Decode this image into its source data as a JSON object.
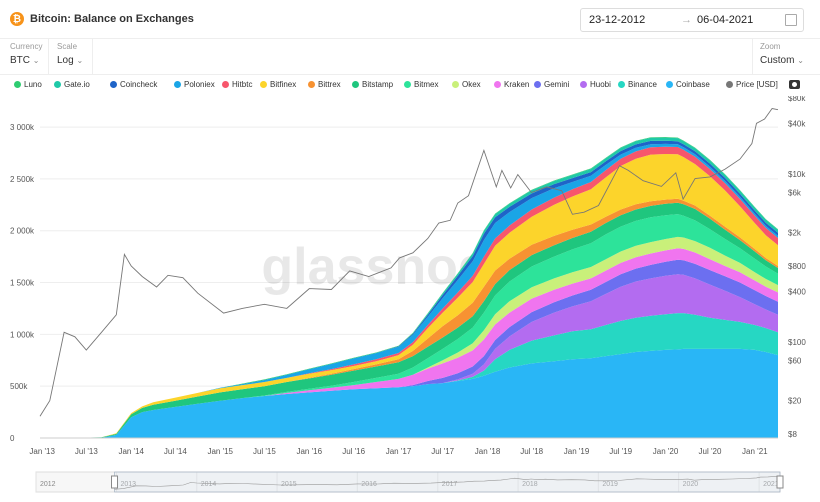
{
  "header": {
    "title": "Bitcoin: Balance on Exchanges",
    "date_from": "23-12-2012",
    "date_to": "06-04-2021",
    "arrow": "→"
  },
  "controls": {
    "currency": {
      "label": "Currency",
      "value": "BTC"
    },
    "scale": {
      "label": "Scale",
      "value": "Log"
    },
    "zoom": {
      "label": "Zoom",
      "value": "Custom"
    }
  },
  "watermark": "glassnode",
  "chart_data": {
    "type": "area",
    "title": "Bitcoin: Balance on Exchanges",
    "x_dates": [
      "2012-12-23",
      "2013-03-01",
      "2013-06-01",
      "2013-09-01",
      "2013-11-01",
      "2014-01-01",
      "2014-02-15",
      "2014-04-01",
      "2014-07-01",
      "2014-10-01",
      "2015-01-01",
      "2015-04-01",
      "2015-07-01",
      "2015-10-01",
      "2016-01-01",
      "2016-04-01",
      "2016-07-01",
      "2016-10-01",
      "2017-01-01",
      "2017-03-01",
      "2017-05-01",
      "2017-07-01",
      "2017-09-01",
      "2017-11-01",
      "2017-12-17",
      "2018-02-01",
      "2018-04-01",
      "2018-07-01",
      "2018-10-01",
      "2018-12-15",
      "2019-03-01",
      "2019-05-01",
      "2019-07-01",
      "2019-09-01",
      "2019-11-01",
      "2020-01-01",
      "2020-02-20",
      "2020-03-15",
      "2020-05-01",
      "2020-07-01",
      "2020-09-01",
      "2020-11-01",
      "2021-01-01",
      "2021-02-15",
      "2021-04-06"
    ],
    "series": [
      {
        "name": "Coinbase",
        "color": "#29b6f6",
        "values": [
          0,
          0,
          1000,
          3000,
          30000,
          200000,
          250000,
          270000,
          300000,
          330000,
          360000,
          385000,
          405000,
          425000,
          440000,
          455000,
          470000,
          480000,
          490000,
          500000,
          520000,
          530000,
          550000,
          570000,
          600000,
          640000,
          680000,
          720000,
          740000,
          760000,
          770000,
          790000,
          810000,
          830000,
          840000,
          850000,
          855000,
          860000,
          860000,
          860000,
          860000,
          860000,
          850000,
          830000,
          800000
        ]
      },
      {
        "name": "Binance",
        "color": "#26d7c3",
        "values": [
          0,
          0,
          0,
          0,
          0,
          0,
          0,
          0,
          0,
          0,
          0,
          0,
          0,
          0,
          0,
          0,
          0,
          0,
          0,
          0,
          0,
          0,
          5000,
          20000,
          50000,
          120000,
          170000,
          220000,
          250000,
          270000,
          280000,
          300000,
          320000,
          330000,
          340000,
          345000,
          350000,
          345000,
          330000,
          300000,
          280000,
          260000,
          240000,
          230000,
          220000
        ]
      },
      {
        "name": "Huobi",
        "color": "#b36cf0",
        "values": [
          0,
          0,
          0,
          0,
          0,
          0,
          0,
          0,
          0,
          0,
          0,
          0,
          0,
          0,
          0,
          0,
          0,
          0,
          0,
          0,
          0,
          0,
          10000,
          30000,
          60000,
          100000,
          130000,
          180000,
          220000,
          240000,
          270000,
          300000,
          330000,
          350000,
          360000,
          370000,
          375000,
          370000,
          350000,
          320000,
          280000,
          240000,
          200000,
          180000,
          170000
        ]
      },
      {
        "name": "Gemini",
        "color": "#6c6ff0",
        "values": [
          0,
          0,
          0,
          0,
          0,
          0,
          0,
          0,
          0,
          0,
          0,
          0,
          0,
          0,
          0,
          0,
          0,
          0,
          0,
          10000,
          30000,
          50000,
          60000,
          70000,
          80000,
          85000,
          90000,
          95000,
          100000,
          105000,
          110000,
          115000,
          120000,
          125000,
          130000,
          135000,
          140000,
          140000,
          140000,
          140000,
          140000,
          140000,
          135000,
          130000,
          125000
        ]
      },
      {
        "name": "Kraken",
        "color": "#f075ef",
        "values": [
          0,
          0,
          0,
          0,
          0,
          0,
          0,
          0,
          0,
          0,
          0,
          0,
          0,
          10000,
          20000,
          30000,
          40000,
          60000,
          80000,
          100000,
          120000,
          140000,
          150000,
          155000,
          160000,
          150000,
          140000,
          130000,
          120000,
          115000,
          110000,
          110000,
          110000,
          110000,
          110000,
          110000,
          110000,
          110000,
          110000,
          105000,
          100000,
          100000,
          95000,
          90000,
          90000
        ]
      },
      {
        "name": "Okex",
        "color": "#c9f07a",
        "values": [
          0,
          0,
          0,
          0,
          0,
          0,
          0,
          0,
          0,
          0,
          0,
          0,
          0,
          0,
          0,
          0,
          0,
          0,
          0,
          0,
          10000,
          30000,
          50000,
          70000,
          90000,
          100000,
          110000,
          110000,
          110000,
          110000,
          110000,
          110000,
          110000,
          110000,
          110000,
          110000,
          110000,
          110000,
          110000,
          110000,
          100000,
          90000,
          80000,
          75000,
          70000
        ]
      },
      {
        "name": "Bitmex",
        "color": "#2de39a",
        "values": [
          0,
          0,
          0,
          0,
          0,
          0,
          0,
          0,
          0,
          0,
          0,
          0,
          5000,
          10000,
          15000,
          20000,
          30000,
          40000,
          50000,
          70000,
          90000,
          110000,
          130000,
          150000,
          170000,
          180000,
          190000,
          200000,
          210000,
          220000,
          230000,
          240000,
          240000,
          240000,
          240000,
          230000,
          220000,
          210000,
          200000,
          180000,
          160000,
          140000,
          130000,
          120000,
          110000
        ]
      },
      {
        "name": "Bitstamp",
        "color": "#1fc67e",
        "values": [
          0,
          0,
          2000,
          5000,
          10000,
          30000,
          40000,
          50000,
          60000,
          70000,
          80000,
          85000,
          90000,
          95000,
          100000,
          105000,
          110000,
          110000,
          110000,
          110000,
          110000,
          110000,
          110000,
          110000,
          110000,
          110000,
          110000,
          110000,
          110000,
          110000,
          110000,
          110000,
          110000,
          110000,
          110000,
          110000,
          110000,
          110000,
          110000,
          100000,
          90000,
          80000,
          70000,
          60000,
          55000
        ]
      },
      {
        "name": "Bittrex",
        "color": "#f79232",
        "values": [
          0,
          0,
          0,
          0,
          0,
          0,
          0,
          0,
          0,
          0,
          0,
          0,
          0,
          0,
          5000,
          10000,
          15000,
          20000,
          30000,
          50000,
          80000,
          110000,
          120000,
          130000,
          140000,
          130000,
          110000,
          100000,
          90000,
          80000,
          70000,
          60000,
          55000,
          50000,
          45000,
          40000,
          38000,
          35000,
          33000,
          30000,
          28000,
          26000,
          24000,
          22000,
          20000
        ]
      },
      {
        "name": "Bitfinex",
        "color": "#fcd42b",
        "values": [
          0,
          0,
          0,
          0,
          5000,
          10000,
          15000,
          25000,
          30000,
          35000,
          40000,
          40000,
          40000,
          40000,
          40000,
          35000,
          30000,
          30000,
          40000,
          60000,
          100000,
          130000,
          170000,
          200000,
          220000,
          240000,
          250000,
          270000,
          300000,
          320000,
          340000,
          380000,
          420000,
          440000,
          450000,
          440000,
          430000,
          420000,
          400000,
          380000,
          350000,
          300000,
          250000,
          220000,
          200000
        ]
      },
      {
        "name": "Hitbtc",
        "color": "#f7566c",
        "values": [
          0,
          0,
          0,
          0,
          0,
          0,
          0,
          0,
          0,
          0,
          0,
          0,
          0,
          0,
          5000,
          10000,
          15000,
          20000,
          20000,
          25000,
          30000,
          40000,
          50000,
          60000,
          70000,
          70000,
          70000,
          70000,
          70000,
          70000,
          70000,
          70000,
          70000,
          70000,
          70000,
          70000,
          70000,
          70000,
          70000,
          70000,
          70000,
          70000,
          70000,
          70000,
          70000
        ]
      },
      {
        "name": "Poloniex",
        "color": "#1aa5e6",
        "values": [
          0,
          0,
          0,
          0,
          0,
          0,
          0,
          0,
          0,
          0,
          5000,
          10000,
          20000,
          30000,
          40000,
          50000,
          60000,
          60000,
          60000,
          70000,
          80000,
          100000,
          120000,
          140000,
          160000,
          150000,
          130000,
          110000,
          90000,
          70000,
          60000,
          50000,
          40000,
          35000,
          30000,
          28000,
          26000,
          25000,
          24000,
          23000,
          22000,
          21000,
          20000,
          20000,
          20000
        ]
      },
      {
        "name": "Coincheck",
        "color": "#1e64c8",
        "values": [
          0,
          0,
          0,
          0,
          0,
          0,
          0,
          0,
          0,
          0,
          0,
          0,
          0,
          0,
          0,
          0,
          0,
          0,
          5000,
          10000,
          20000,
          30000,
          40000,
          50000,
          60000,
          55000,
          50000,
          45000,
          40000,
          38000,
          36000,
          35000,
          34000,
          33000,
          32000,
          31000,
          30000,
          30000,
          30000,
          30000,
          30000,
          30000,
          30000,
          30000,
          30000
        ]
      },
      {
        "name": "Gate.io",
        "color": "#1fc9a8",
        "values": [
          0,
          0,
          0,
          0,
          0,
          0,
          0,
          0,
          0,
          0,
          0,
          0,
          0,
          0,
          0,
          0,
          0,
          0,
          0,
          5000,
          10000,
          15000,
          20000,
          25000,
          30000,
          30000,
          30000,
          30000,
          30000,
          30000,
          30000,
          30000,
          30000,
          30000,
          30000,
          30000,
          30000,
          30000,
          30000,
          30000,
          30000,
          30000,
          30000,
          30000,
          30000
        ]
      },
      {
        "name": "Luno",
        "color": "#2ecc71",
        "values": [
          0,
          0,
          0,
          0,
          0,
          0,
          0,
          0,
          0,
          0,
          0,
          5000,
          5000,
          5000,
          5000,
          5000,
          5000,
          5000,
          5000,
          5000,
          5000,
          5000,
          5000,
          5000,
          5000,
          5000,
          5000,
          5000,
          5000,
          5000,
          5000,
          5000,
          5000,
          5000,
          5000,
          5000,
          5000,
          5000,
          5000,
          5000,
          5000,
          5000,
          5000,
          5000,
          5000
        ]
      }
    ],
    "price_series": {
      "name": "Price [USD]",
      "color": "#777777",
      "dates": [
        "2012-12-23",
        "2013-02-01",
        "2013-04-01",
        "2013-05-15",
        "2013-07-01",
        "2013-09-01",
        "2013-11-01",
        "2013-12-04",
        "2014-01-01",
        "2014-02-15",
        "2014-04-15",
        "2014-06-01",
        "2014-08-01",
        "2014-10-01",
        "2015-01-15",
        "2015-04-01",
        "2015-07-01",
        "2015-10-01",
        "2016-01-01",
        "2016-04-01",
        "2016-06-15",
        "2016-09-01",
        "2016-12-01",
        "2017-01-05",
        "2017-03-01",
        "2017-05-01",
        "2017-06-15",
        "2017-08-01",
        "2017-09-01",
        "2017-10-15",
        "2017-12-17",
        "2018-02-06",
        "2018-03-01",
        "2018-04-06",
        "2018-05-05",
        "2018-06-30",
        "2018-09-01",
        "2018-11-01",
        "2018-12-15",
        "2019-02-01",
        "2019-04-01",
        "2019-06-26",
        "2019-08-01",
        "2019-10-01",
        "2019-12-15",
        "2020-02-12",
        "2020-03-13",
        "2020-05-01",
        "2020-07-01",
        "2020-09-01",
        "2020-11-01",
        "2020-12-20",
        "2021-01-08",
        "2021-02-10",
        "2021-03-13",
        "2021-04-06"
      ],
      "values": [
        13,
        20,
        130,
        115,
        80,
        130,
        210,
        1100,
        800,
        600,
        450,
        620,
        580,
        380,
        220,
        250,
        280,
        250,
        430,
        420,
        700,
        600,
        760,
        1000,
        1150,
        1700,
        2600,
        2800,
        4500,
        5500,
        19000,
        7000,
        11000,
        6800,
        9800,
        6000,
        7000,
        6300,
        3300,
        3500,
        4200,
        12500,
        11000,
        8300,
        7100,
        10300,
        5000,
        8800,
        9200,
        11400,
        15000,
        23000,
        40000,
        45000,
        60000,
        58000
      ]
    },
    "y_left": {
      "ticks": [
        "0",
        "500k",
        "1 000k",
        "1 500k",
        "2 000k",
        "2 500k",
        "3 000k"
      ],
      "range": [
        0,
        3300000
      ]
    },
    "y_right": {
      "scale": "log",
      "ticks": [
        "$8",
        "$20",
        "$60",
        "$100",
        "$400",
        "$800",
        "$2k",
        "$6k",
        "$10k",
        "$40k",
        "$80k"
      ]
    },
    "x_ticks": [
      "Jan '13",
      "Jul '13",
      "Jan '14",
      "Jul '14",
      "Jan '15",
      "Jul '15",
      "Jan '16",
      "Jul '16",
      "Jan '17",
      "Jul '17",
      "Jan '18",
      "Jul '18",
      "Jan '19",
      "Jul '19",
      "Jan '20",
      "Jul '20",
      "Jan '21"
    ],
    "navigator_years": [
      "2012",
      "2013",
      "2014",
      "2015",
      "2016",
      "2017",
      "2018",
      "2019",
      "2020",
      "2021"
    ],
    "legend": [
      "Luno",
      "Gate.io",
      "Coincheck",
      "Poloniex",
      "Hitbtc",
      "Bitfinex",
      "Bittrex",
      "Bitstamp",
      "Bitmex",
      "Okex",
      "Kraken",
      "Gemini",
      "Huobi",
      "Binance",
      "Coinbase",
      "Price [USD]"
    ],
    "legend_placement": "top"
  }
}
